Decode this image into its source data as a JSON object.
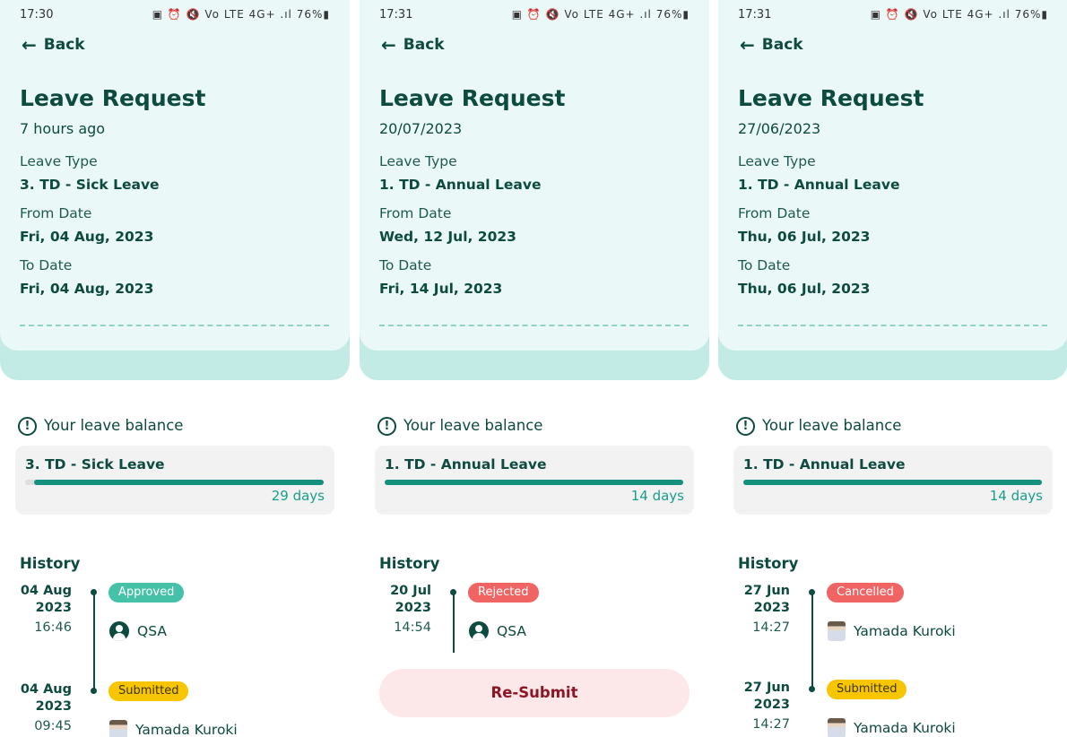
{
  "colors": {
    "primary_text": "#0d4a40",
    "header_bg": "#ebf8f8",
    "accent_band": "#c3ebe6",
    "progress": "#14907d",
    "approved": "#45c1a8",
    "rejected": "#f06464",
    "cancelled": "#f06464",
    "submitted": "#f7c600",
    "resubmit_bg": "#fde8e9",
    "resubmit_text": "#8f1424"
  },
  "labels": {
    "back": "Back",
    "title": "Leave Request",
    "leave_type": "Leave Type",
    "from_date": "From Date",
    "to_date": "To Date",
    "balance": "Your leave balance",
    "history": "History",
    "status_icons": "▣ ⏰ 🔇 Vo LTE 4G+ .ıl"
  },
  "panels": [
    {
      "status_time": "17:30",
      "battery": "76%",
      "subtitle": "7 hours ago",
      "leave_type": "3. TD - Sick Leave",
      "from_date": "Fri, 04 Aug, 2023",
      "to_date": "Fri, 04 Aug, 2023",
      "balance": {
        "name": "3. TD - Sick Leave",
        "days": "29 days",
        "remaining_fraction": 0.97
      },
      "history": [
        {
          "date": "04 Aug 2023",
          "time": "16:46",
          "status": "Approved",
          "user": "QSA",
          "user_icon": "account-circle-icon"
        },
        {
          "date": "04 Aug 2023",
          "time": "09:45",
          "status": "Submitted",
          "user": "Yamada Kuroki",
          "user_icon": "user-photo"
        }
      ]
    },
    {
      "status_time": "17:31",
      "battery": "76%",
      "subtitle": "20/07/2023",
      "leave_type": "1. TD - Annual Leave",
      "from_date": "Wed, 12 Jul, 2023",
      "to_date": "Fri, 14 Jul, 2023",
      "balance": {
        "name": "1. TD - Annual Leave",
        "days": "14 days",
        "remaining_fraction": 1.0
      },
      "history": [
        {
          "date": "20 Jul 2023",
          "time": "14:54",
          "status": "Rejected",
          "user": "QSA",
          "user_icon": "account-circle-icon"
        }
      ],
      "resubmit": "Re-Submit"
    },
    {
      "status_time": "17:31",
      "battery": "76%",
      "subtitle": "27/06/2023",
      "leave_type": "1. TD - Annual Leave",
      "from_date": "Thu, 06 Jul, 2023",
      "to_date": "Thu, 06 Jul, 2023",
      "balance": {
        "name": "1. TD - Annual Leave",
        "days": "14 days",
        "remaining_fraction": 1.0
      },
      "history": [
        {
          "date": "27 Jun 2023",
          "time": "14:27",
          "status": "Cancelled",
          "user": "Yamada Kuroki",
          "user_icon": "user-photo"
        },
        {
          "date": "27 Jun 2023",
          "time": "14:27",
          "status": "Submitted",
          "user": "Yamada Kuroki",
          "user_icon": "user-photo"
        }
      ]
    }
  ]
}
